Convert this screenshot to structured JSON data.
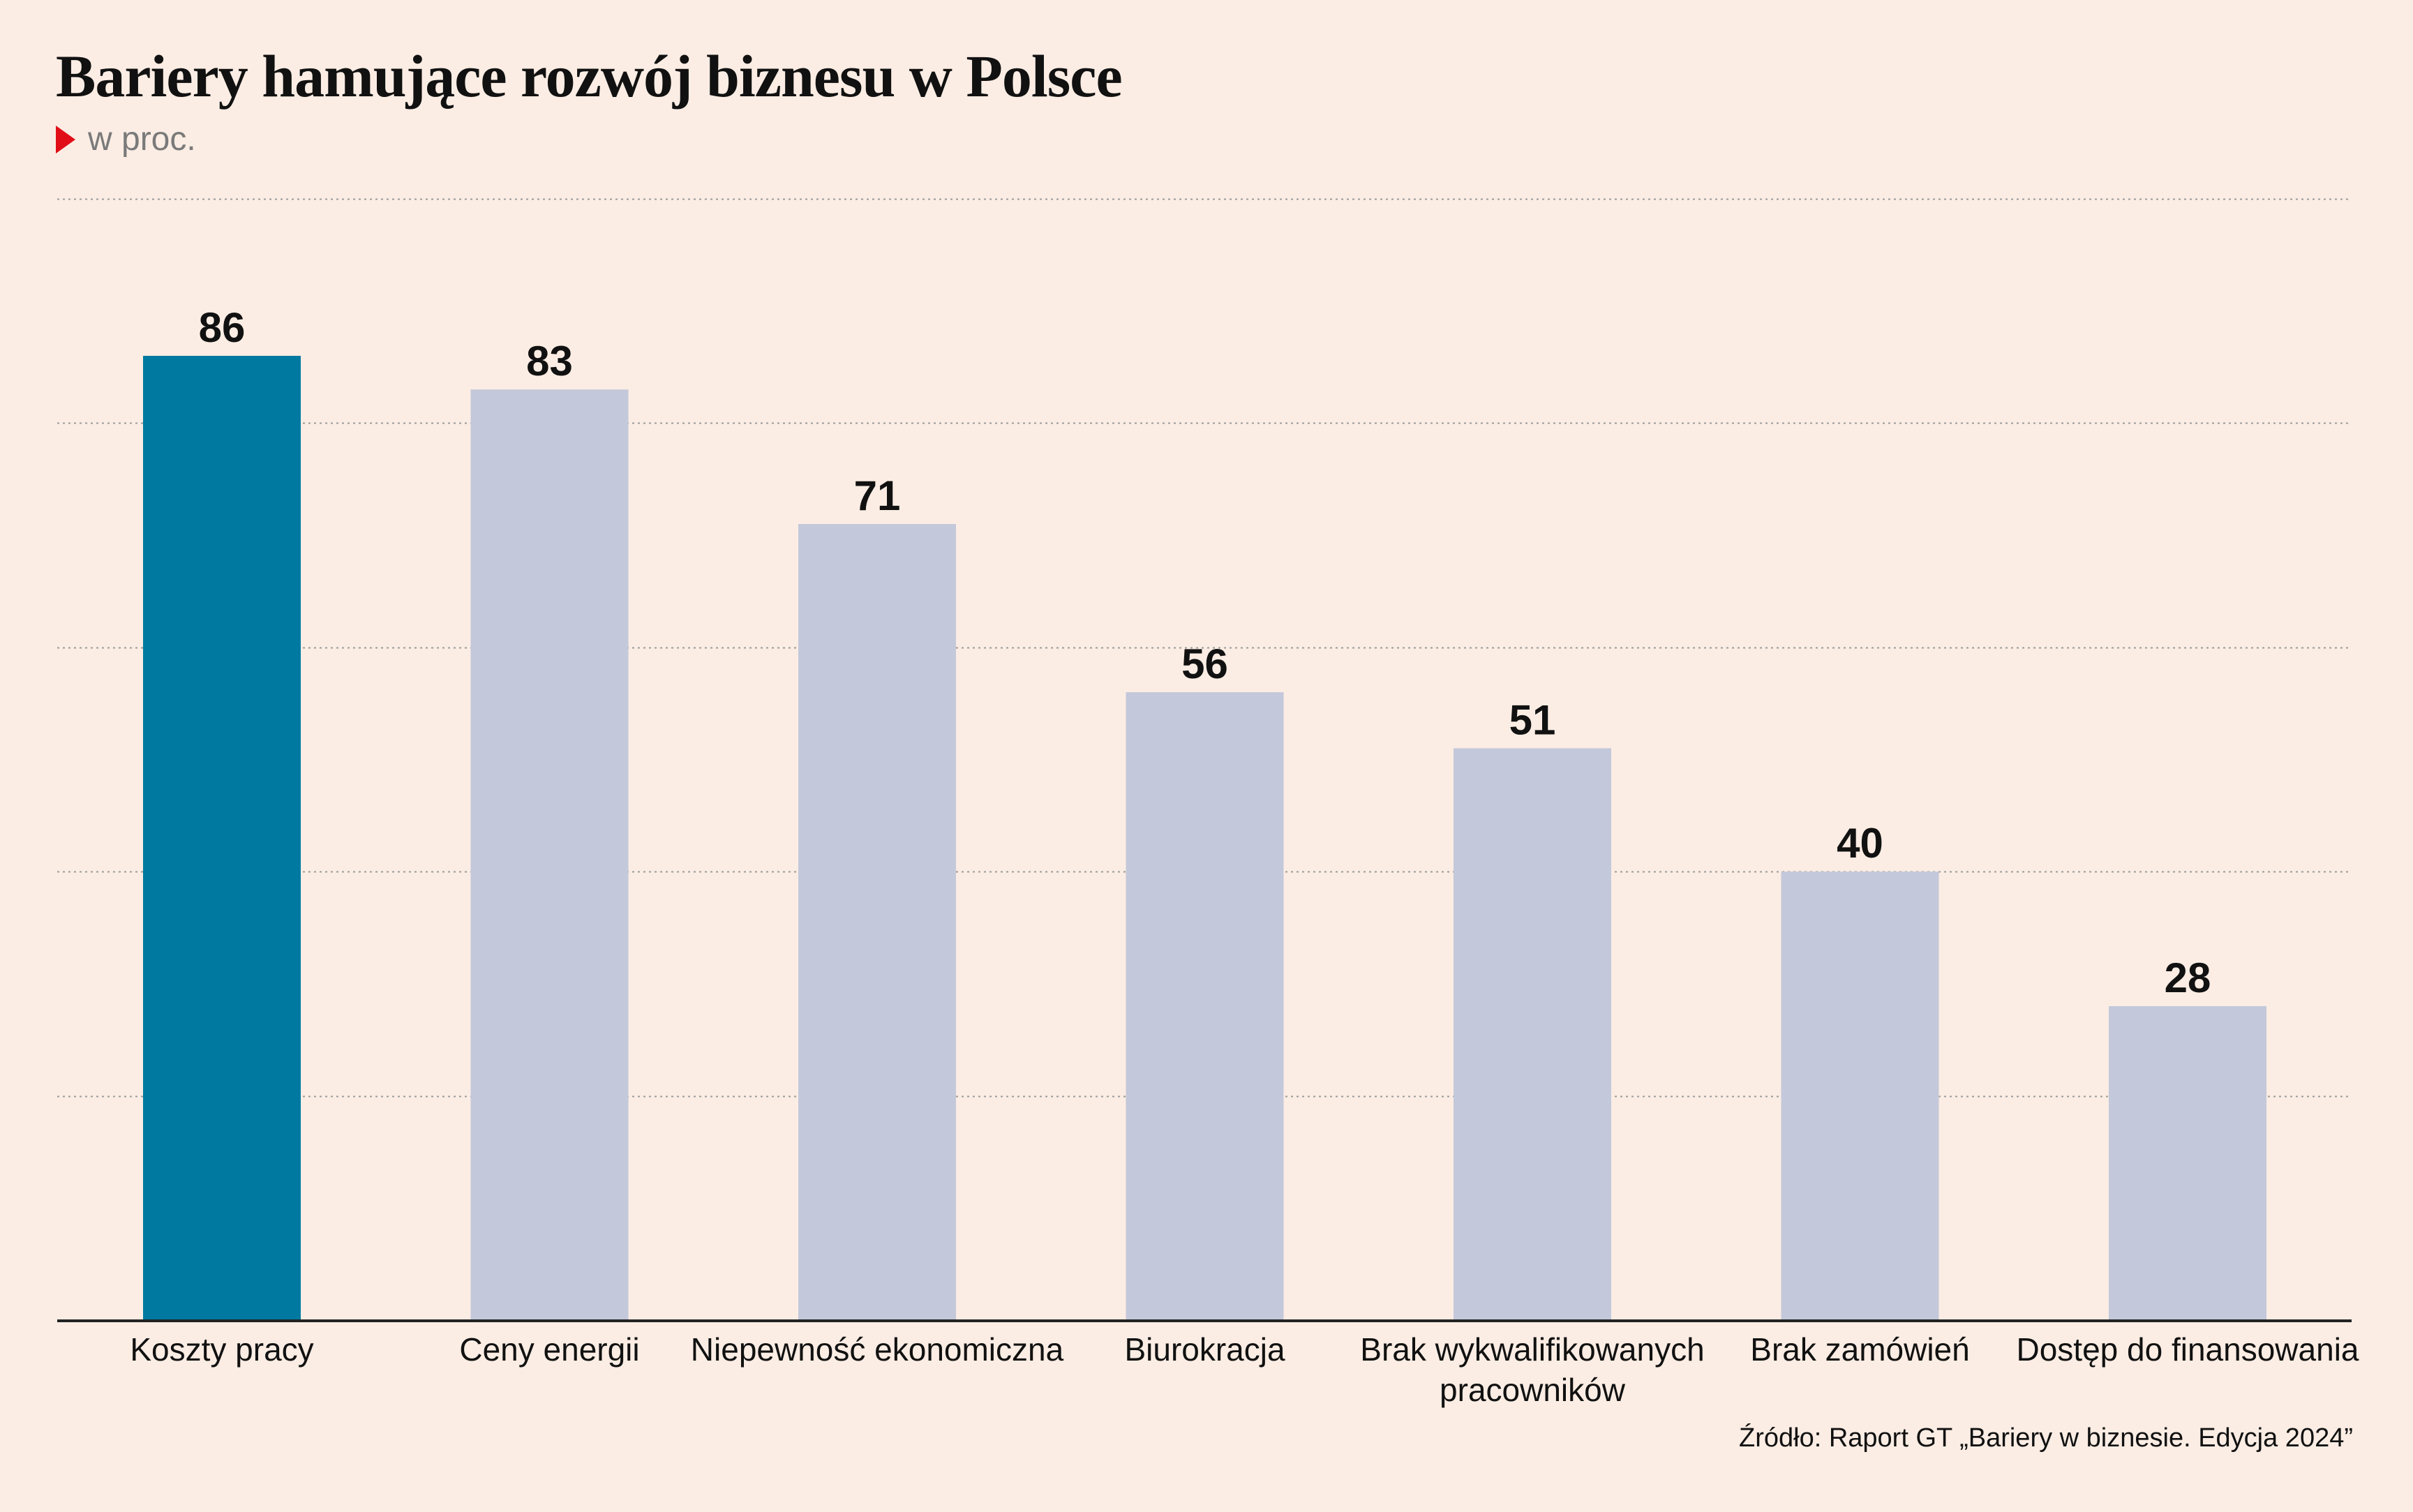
{
  "title": "Bariery hamujące rozwój biznesu w Polsce",
  "subtitle": "w proc.",
  "source": "Źródło: Raport GT „Bariery w biznesie. Edycja 2024”",
  "colors": {
    "background": "#fbede4",
    "highlight_bar": "#0079a1",
    "bar": "#c3c8da",
    "marker": "#e10e18",
    "gridline": "#9a9a9a",
    "axis": "#222222",
    "text": "#111111"
  },
  "chart_data": {
    "type": "bar",
    "title": "Bariery hamujące rozwój biznesu w Polsce",
    "subtitle": "w proc.",
    "xlabel": "",
    "ylabel": "",
    "categories": [
      [
        "Koszty pracy"
      ],
      [
        "Ceny energii"
      ],
      [
        "Niepewność ekonomiczna"
      ],
      [
        "Biurokracja"
      ],
      [
        "Brak wykwalifikowanych",
        "pracowników"
      ],
      [
        "Brak zamówień"
      ],
      [
        "Dostęp do finansowania"
      ]
    ],
    "values": [
      86,
      83,
      71,
      56,
      51,
      40,
      28
    ],
    "highlight_index": 0,
    "ylim": [
      0,
      100
    ],
    "gridlines": [
      20,
      40,
      60,
      80,
      100
    ],
    "grid": true,
    "legend": "none",
    "data_labels": true
  }
}
